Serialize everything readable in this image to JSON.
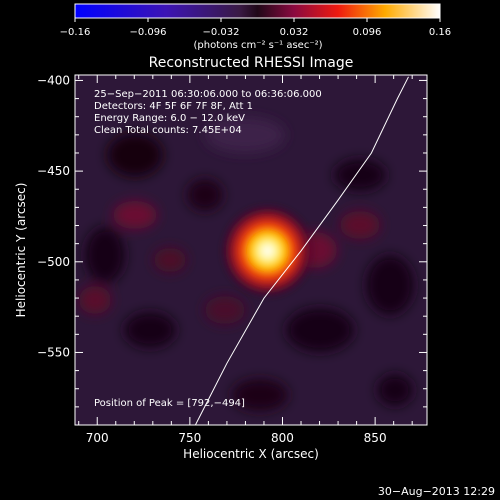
{
  "chart_data": {
    "type": "heatmap",
    "title": "Reconstructed RHESSI Image",
    "xlabel": "Heliocentric X (arcsec)",
    "ylabel": "Heliocentric Y (arcsec)",
    "xlim": [
      688,
      878
    ],
    "ylim": [
      -590,
      -397
    ],
    "x_ticks": [
      700,
      750,
      800,
      850
    ],
    "x_tick_labels": [
      "700",
      "750",
      "800",
      "850"
    ],
    "y_ticks": [
      -400,
      -450,
      -500,
      -550
    ],
    "y_tick_labels": [
      "−400",
      "−450",
      "−500",
      "−550"
    ],
    "colorbar": {
      "range": [
        -0.16,
        0.16
      ],
      "ticks": [
        -0.16,
        -0.096,
        -0.032,
        0.032,
        0.096,
        0.16
      ],
      "tick_labels": [
        "−0.16",
        "−0.096",
        "−0.032",
        "0.032",
        "0.096",
        "0.16"
      ],
      "unit_label": "(photons cm⁻² s⁻¹ asec⁻²)"
    },
    "annotations": [
      "25−Sep−2011 06:30:06.000 to 06:36:06.000",
      "Detectors: 4F 5F 6F 7F 8F, Att 1",
      "Energy Range: 6.0 − 12.0 keV",
      "Clean    Total counts: 7.45E+04"
    ],
    "peak_label": "Position of Peak = [792,−494]",
    "peak": {
      "x": 792,
      "y": -494
    },
    "limb_curve": [
      [
        753,
        -590
      ],
      [
        770,
        -556
      ],
      [
        790,
        -520
      ],
      [
        810,
        -494
      ],
      [
        830,
        -466
      ],
      [
        848,
        -440
      ],
      [
        862,
        -410
      ],
      [
        868,
        -398
      ]
    ],
    "grid": false
  },
  "footer": {
    "timestamp": "30−Aug−2013 12:29"
  }
}
